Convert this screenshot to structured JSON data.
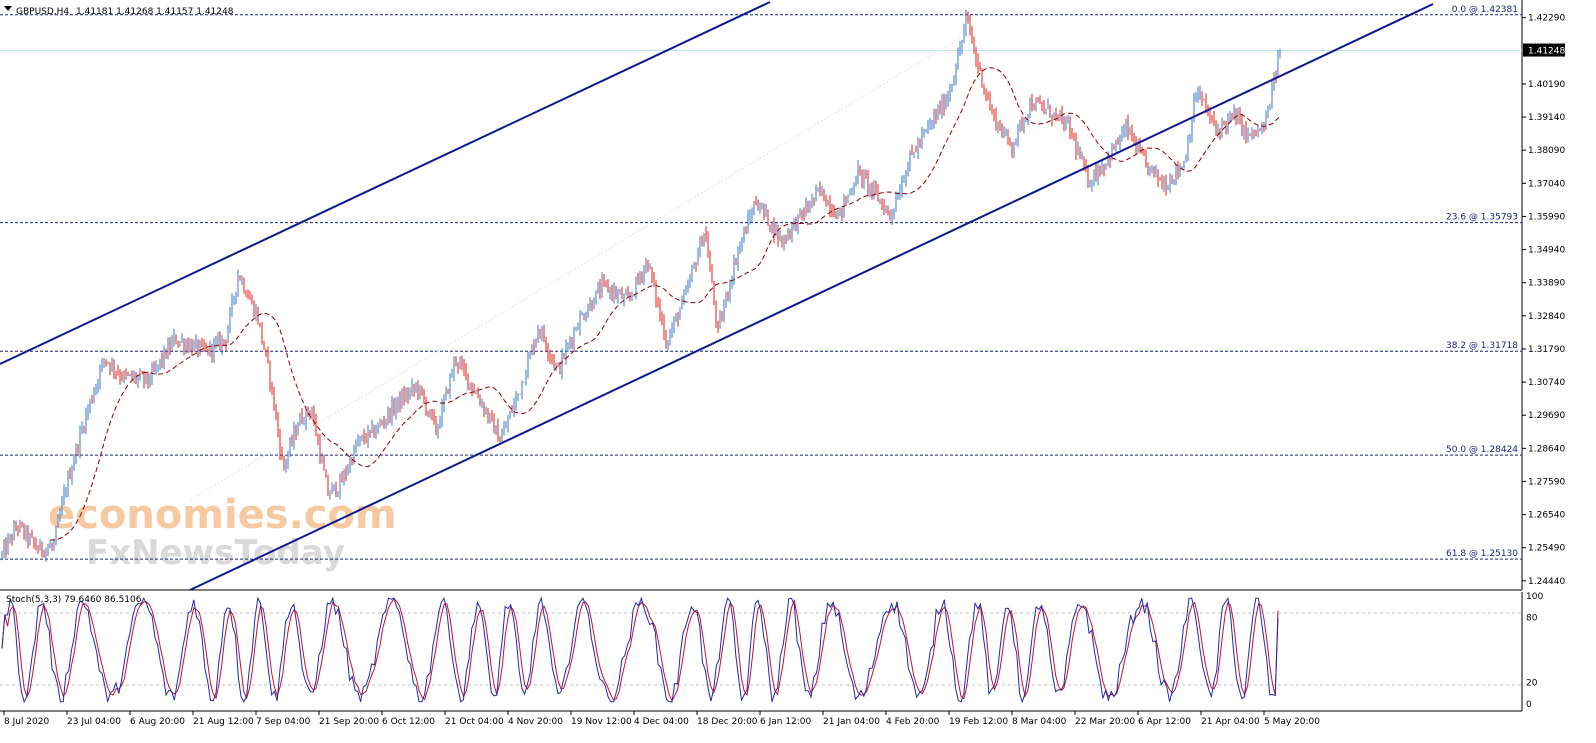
{
  "header": {
    "symbol": "GBPUSD,H4",
    "ohlc": "1.41181 1.41268 1.41157 1.41248"
  },
  "watermark": {
    "line1": "economies.com",
    "line2": "FxNewsToday"
  },
  "indicator": {
    "label": "Stoch(5,3,3) 79.6460 86.5106"
  },
  "colors": {
    "bull": "#3a78c9",
    "bear": "#e0201b",
    "channel": "#10178f",
    "ma": "#8b0000",
    "fib": "#1a237e",
    "stoch_main": "#1f2ba8",
    "stoch_signal": "#c8102e",
    "current_price_line": "#bfe6f2"
  },
  "chart_data": [
    {
      "type": "candlestick",
      "timeframe": "H4",
      "current_price": 1.41248,
      "ylim": [
        1.2415,
        1.4285
      ],
      "y_tick_labels": [
        "1.42290",
        "1.40190",
        "1.39140",
        "1.38090",
        "1.37040",
        "1.35990",
        "1.34940",
        "1.33890",
        "1.32840",
        "1.31790",
        "1.30740",
        "1.29690",
        "1.28640",
        "1.27590",
        "1.26540",
        "1.25490",
        "1.24440"
      ],
      "x_tick_labels": [
        "8 Jul 2020",
        "23 Jul 04:00",
        "6 Aug 20:00",
        "21 Aug 12:00",
        "7 Sep 04:00",
        "21 Sep 20:00",
        "6 Oct 12:00",
        "21 Oct 04:00",
        "4 Nov 20:00",
        "19 Nov 12:00",
        "4 Dec 04:00",
        "18 Dec 20:00",
        "6 Jan 12:00",
        "21 Jan 04:00",
        "4 Feb 20:00",
        "19 Feb 12:00",
        "8 Mar 04:00",
        "22 Mar 20:00",
        "6 Apr 12:00",
        "21 Apr 04:00",
        "5 May 20:00"
      ],
      "fibonacci": [
        {
          "label": "0.0 @ 1.42381",
          "value": 1.42381
        },
        {
          "label": "23.6 @ 1.35793",
          "value": 1.35793
        },
        {
          "label": "38.2 @ 1.31718",
          "value": 1.31718
        },
        {
          "label": "50.0 @ 1.28424",
          "value": 1.28424
        },
        {
          "label": "61.8 @ 1.25130",
          "value": 1.2513
        }
      ],
      "price_path": [
        {
          "t": 0,
          "v": 1.2525
        },
        {
          "t": 0.012,
          "v": 1.262
        },
        {
          "t": 0.028,
          "v": 1.2545
        },
        {
          "t": 0.04,
          "v": 1.255
        },
        {
          "t": 0.05,
          "v": 1.274
        },
        {
          "t": 0.065,
          "v": 1.296
        },
        {
          "t": 0.08,
          "v": 1.315
        },
        {
          "t": 0.095,
          "v": 1.309
        },
        {
          "t": 0.115,
          "v": 1.308
        },
        {
          "t": 0.135,
          "v": 1.321
        },
        {
          "t": 0.16,
          "v": 1.317
        },
        {
          "t": 0.175,
          "v": 1.321
        },
        {
          "t": 0.185,
          "v": 1.342
        },
        {
          "t": 0.2,
          "v": 1.328
        },
        {
          "t": 0.21,
          "v": 1.308
        },
        {
          "t": 0.22,
          "v": 1.28
        },
        {
          "t": 0.232,
          "v": 1.295
        },
        {
          "t": 0.242,
          "v": 1.299
        },
        {
          "t": 0.255,
          "v": 1.272
        },
        {
          "t": 0.265,
          "v": 1.275
        },
        {
          "t": 0.278,
          "v": 1.288
        },
        {
          "t": 0.292,
          "v": 1.292
        },
        {
          "t": 0.31,
          "v": 1.301
        },
        {
          "t": 0.325,
          "v": 1.306
        },
        {
          "t": 0.34,
          "v": 1.292
        },
        {
          "t": 0.355,
          "v": 1.315
        },
        {
          "t": 0.375,
          "v": 1.301
        },
        {
          "t": 0.39,
          "v": 1.289
        },
        {
          "t": 0.405,
          "v": 1.305
        },
        {
          "t": 0.42,
          "v": 1.325
        },
        {
          "t": 0.435,
          "v": 1.311
        },
        {
          "t": 0.45,
          "v": 1.326
        },
        {
          "t": 0.47,
          "v": 1.338
        },
        {
          "t": 0.49,
          "v": 1.333
        },
        {
          "t": 0.505,
          "v": 1.346
        },
        {
          "t": 0.52,
          "v": 1.32
        },
        {
          "t": 0.535,
          "v": 1.335
        },
        {
          "t": 0.55,
          "v": 1.356
        },
        {
          "t": 0.56,
          "v": 1.323
        },
        {
          "t": 0.575,
          "v": 1.348
        },
        {
          "t": 0.59,
          "v": 1.365
        },
        {
          "t": 0.61,
          "v": 1.352
        },
        {
          "t": 0.625,
          "v": 1.36
        },
        {
          "t": 0.64,
          "v": 1.368
        },
        {
          "t": 0.655,
          "v": 1.36
        },
        {
          "t": 0.67,
          "v": 1.374
        },
        {
          "t": 0.685,
          "v": 1.366
        },
        {
          "t": 0.695,
          "v": 1.36
        },
        {
          "t": 0.71,
          "v": 1.378
        },
        {
          "t": 0.725,
          "v": 1.388
        },
        {
          "t": 0.74,
          "v": 1.398
        },
        {
          "t": 0.748,
          "v": 1.41
        },
        {
          "t": 0.755,
          "v": 1.423
        },
        {
          "t": 0.762,
          "v": 1.41
        },
        {
          "t": 0.775,
          "v": 1.392
        },
        {
          "t": 0.79,
          "v": 1.382
        },
        {
          "t": 0.805,
          "v": 1.396
        },
        {
          "t": 0.82,
          "v": 1.393
        },
        {
          "t": 0.835,
          "v": 1.388
        },
        {
          "t": 0.85,
          "v": 1.371
        },
        {
          "t": 0.865,
          "v": 1.378
        },
        {
          "t": 0.88,
          "v": 1.388
        },
        {
          "t": 0.895,
          "v": 1.376
        },
        {
          "t": 0.91,
          "v": 1.37
        },
        {
          "t": 0.925,
          "v": 1.377
        },
        {
          "t": 0.935,
          "v": 1.4
        },
        {
          "t": 0.95,
          "v": 1.387
        },
        {
          "t": 0.965,
          "v": 1.392
        },
        {
          "t": 0.975,
          "v": 1.385
        },
        {
          "t": 0.988,
          "v": 1.388
        },
        {
          "t": 1.0,
          "v": 1.41248
        }
      ]
    },
    {
      "type": "line",
      "name": "Stoch(5,3,3)",
      "ylim": [
        0,
        100
      ],
      "levels": [
        20,
        80
      ],
      "y_tick_labels": [
        "100",
        "80",
        "20",
        "0"
      ],
      "main_last": 79.646,
      "signal_last": 86.5106
    }
  ]
}
